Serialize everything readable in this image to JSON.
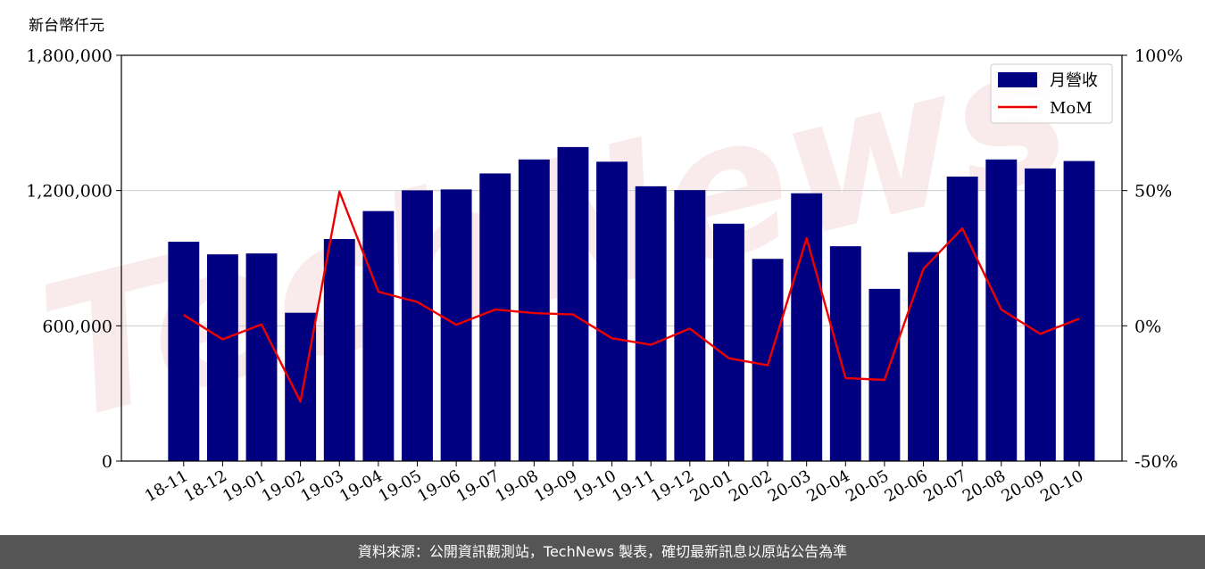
{
  "chart_data": {
    "type": "bar",
    "unit_label": "新台幣仟元",
    "categories": [
      "18-11",
      "18-12",
      "19-01",
      "19-02",
      "19-03",
      "19-04",
      "19-05",
      "19-06",
      "19-07",
      "19-08",
      "19-09",
      "19-10",
      "19-11",
      "19-12",
      "20-01",
      "20-02",
      "20-03",
      "20-04",
      "20-05",
      "20-06",
      "20-07",
      "20-08",
      "20-09",
      "20-10"
    ],
    "series": [
      {
        "name": "月營收",
        "axis": "left",
        "type": "bar",
        "color": "#000080",
        "values": [
          973000,
          917000,
          921000,
          658000,
          985000,
          1109000,
          1201000,
          1205000,
          1276000,
          1338000,
          1393000,
          1328000,
          1219000,
          1202000,
          1053000,
          897000,
          1188000,
          953000,
          764000,
          927000,
          1262000,
          1338000,
          1298000,
          1331000
        ]
      },
      {
        "name": "MoM",
        "axis": "right",
        "type": "line",
        "color": "#ee0000",
        "values": [
          4.0,
          -5.0,
          0.5,
          -28.0,
          49.6,
          12.6,
          8.8,
          0.4,
          6.0,
          4.7,
          4.2,
          -4.6,
          -7.0,
          -1.0,
          -12.0,
          -14.6,
          32.4,
          -19.3,
          -20.0,
          21.0,
          36.0,
          6.0,
          -3.0,
          2.6
        ]
      }
    ],
    "y_left": {
      "ylim": [
        0,
        1800000
      ],
      "ticks": [
        "0",
        "600,000",
        "1,200,000",
        "1,800,000"
      ],
      "tick_values": [
        0,
        600000,
        1200000,
        1800000
      ]
    },
    "y_right": {
      "ylim": [
        -50,
        100
      ],
      "ticks": [
        "-50%",
        "0%",
        "50%",
        "100%"
      ],
      "tick_values": [
        -50,
        0,
        50,
        100
      ]
    },
    "grid": "horizontal",
    "legend": {
      "placement": "top-right",
      "entries": [
        "月營收",
        "MoM"
      ]
    },
    "watermark": "TechNews"
  },
  "footer": {
    "text": "資料來源：公開資訊觀測站，TechNews 製表，確切最新訊息以原站公告為準"
  }
}
